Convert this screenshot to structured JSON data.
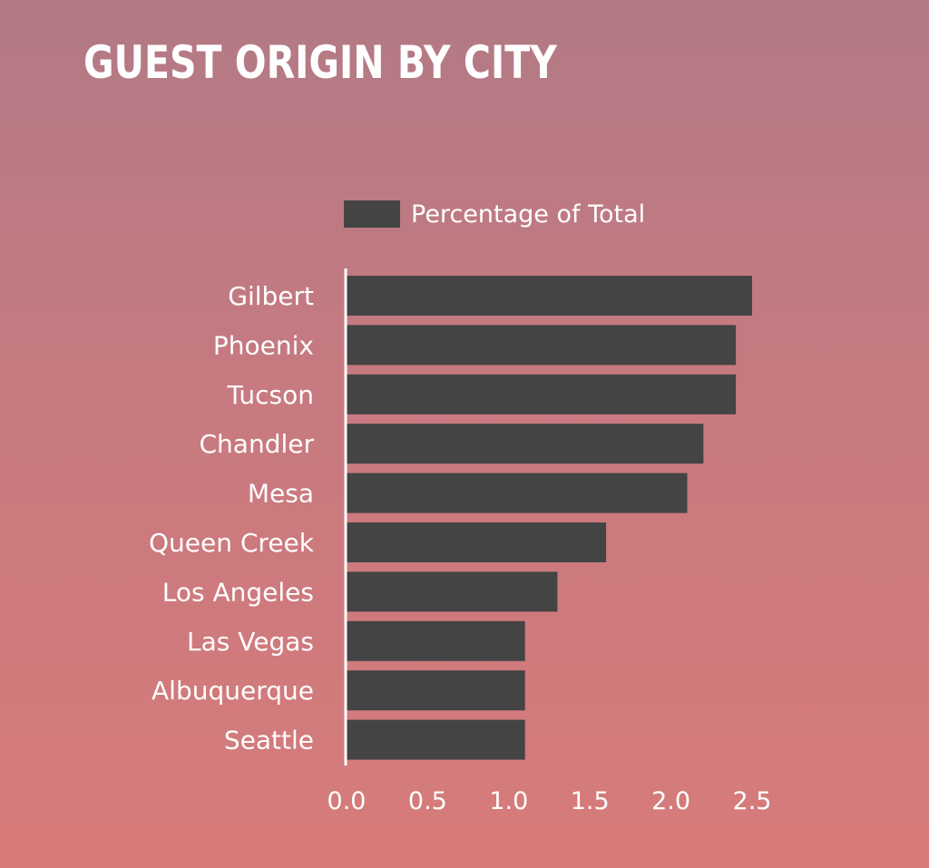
{
  "chart_data": {
    "type": "bar",
    "orientation": "horizontal",
    "title": "GUEST ORIGIN BY CITY",
    "xlabel": "",
    "ylabel": "",
    "categories": [
      "Gilbert",
      "Phoenix",
      "Tucson",
      "Chandler",
      "Mesa",
      "Queen Creek",
      "Los Angeles",
      "Las Vegas",
      "Albuquerque",
      "Seattle"
    ],
    "series": [
      {
        "name": "Percentage of Total",
        "values": [
          2.5,
          2.4,
          2.4,
          2.2,
          2.1,
          1.6,
          1.3,
          1.1,
          1.1,
          1.1
        ]
      }
    ],
    "xlim": [
      0,
      2.5
    ],
    "xticks": [
      "0.0",
      "0.5",
      "1.0",
      "1.5",
      "2.0",
      "2.5"
    ],
    "grid": false,
    "legend_position": "top",
    "colors": {
      "bar": "#444444",
      "text": "#ffffff",
      "axis": "#ffffff"
    }
  }
}
